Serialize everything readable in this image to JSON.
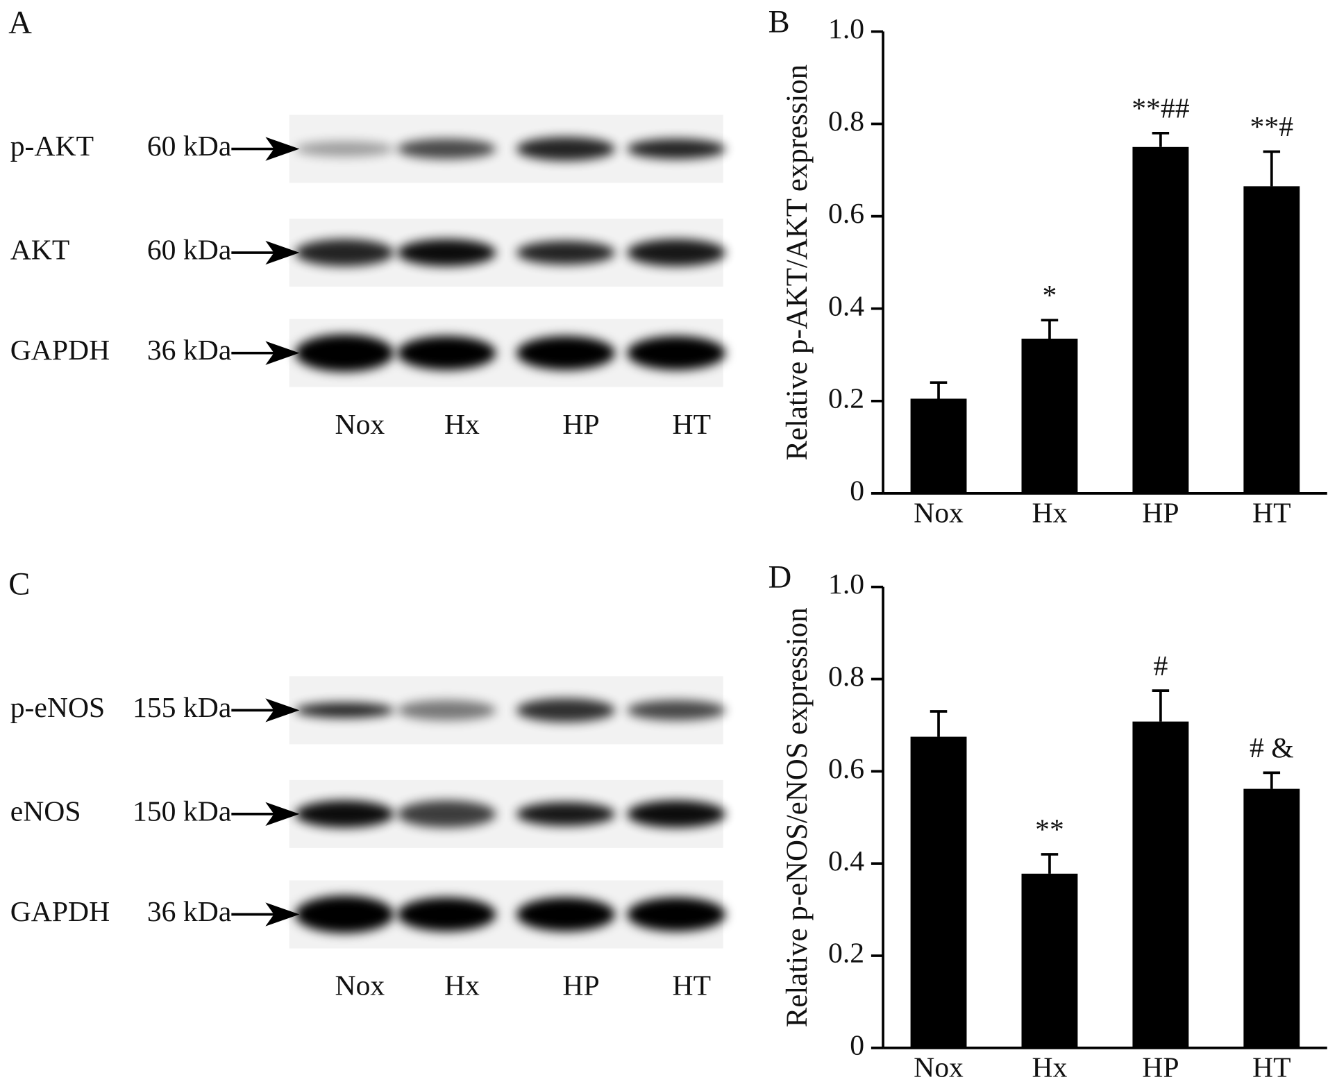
{
  "blots": [
    {
      "panel_label": "A",
      "lanes": [
        "Nox",
        "Hx",
        "HP",
        "HT"
      ],
      "rows": [
        {
          "protein": "p-AKT",
          "size": "60 kDa"
        },
        {
          "protein": "AKT",
          "size": "60 kDa"
        },
        {
          "protein": "GAPDH",
          "size": "36 kDa"
        }
      ]
    },
    {
      "panel_label": "C",
      "lanes": [
        "Nox",
        "Hx",
        "HP",
        "HT"
      ],
      "rows": [
        {
          "protein": "p-eNOS",
          "size": "155 kDa"
        },
        {
          "protein": "eNOS",
          "size": "150 kDa"
        },
        {
          "protein": "GAPDH",
          "size": "36 kDa"
        }
      ]
    }
  ],
  "chart_data": [
    {
      "type": "bar",
      "panel_label": "B",
      "ylabel": "Relative p-AKT/AKT expression",
      "categories": [
        "Nox",
        "Hx",
        "HP",
        "HT"
      ],
      "values": [
        0.205,
        0.335,
        0.75,
        0.665
      ],
      "errors": [
        0.035,
        0.04,
        0.03,
        0.075
      ],
      "significance": [
        null,
        "*",
        "**##",
        "**#"
      ],
      "color": "#000000",
      "ylim": [
        0,
        1
      ],
      "yticks": [
        0,
        0.2,
        0.4,
        0.6,
        0.8,
        {
          "value": 1,
          "label": "1.0"
        }
      ]
    },
    {
      "type": "bar",
      "panel_label": "D",
      "ylabel": "Relative p-eNOS/eNOS expression",
      "categories": [
        "Nox",
        "Hx",
        "HP",
        "HT"
      ],
      "values": [
        0.675,
        0.378,
        0.708,
        0.562
      ],
      "errors": [
        0.055,
        0.042,
        0.067,
        0.035
      ],
      "significance": [
        null,
        "**",
        "#",
        "# &"
      ],
      "color": "#000000",
      "ylim": [
        0,
        1
      ],
      "yticks": [
        0,
        0.2,
        0.4,
        0.6,
        0.8,
        {
          "value": 1,
          "label": "1.0"
        }
      ]
    }
  ]
}
